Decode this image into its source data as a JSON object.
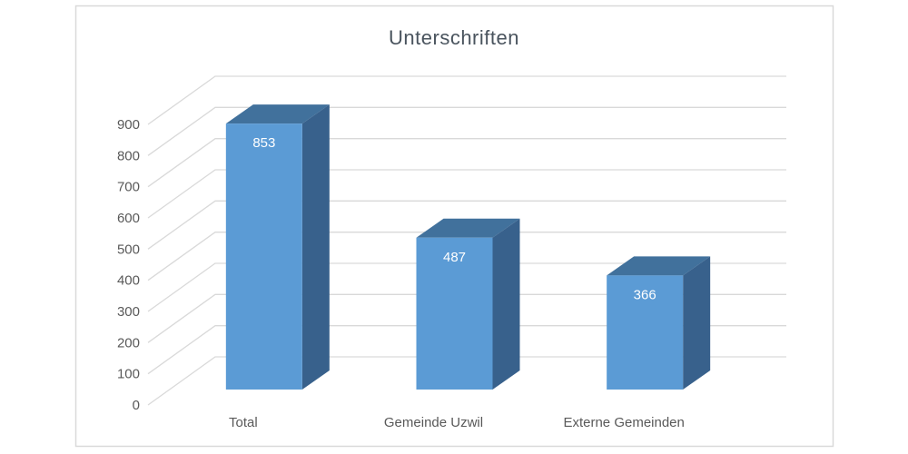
{
  "chart": {
    "title": "Unterschriften"
  },
  "chart_data": {
    "type": "bar",
    "style": "3d-column",
    "title": "Unterschriften",
    "categories": [
      "Total",
      "Gemeinde Uzwil",
      "Externe Gemeinden"
    ],
    "series": [
      {
        "name": "Unterschriften",
        "values": [
          853,
          487,
          366
        ]
      }
    ],
    "values": [
      853,
      487,
      366
    ],
    "data_labels": [
      "853",
      "487",
      "366"
    ],
    "xlabel": "",
    "ylabel": "",
    "ylim": [
      0,
      900
    ],
    "ytick_step": 100,
    "yticks": [
      0,
      100,
      200,
      300,
      400,
      500,
      600,
      700,
      800,
      900
    ],
    "grid": true,
    "legend": "none",
    "colors": {
      "background": "#ffffff",
      "frame": "#d9d9d9",
      "gridline": "#d9d9d9",
      "bar_front": "#5b9bd5",
      "bar_top": "#41719c",
      "bar_side": "#38618c",
      "title_text": "#4a545e",
      "axis_text": "#595959",
      "data_label_text": "#ffffff"
    }
  }
}
